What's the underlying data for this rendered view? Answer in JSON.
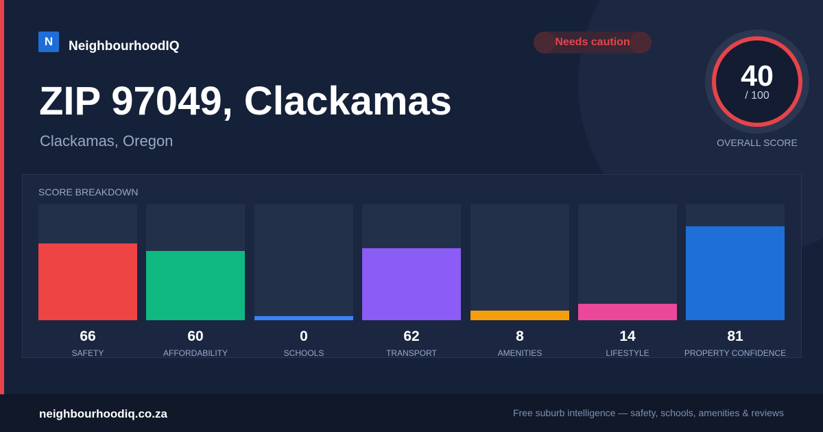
{
  "brand": {
    "logo_letter": "N",
    "name": "NeighbourhoodIQ"
  },
  "status": {
    "label": "Needs caution",
    "color": "#e8434a"
  },
  "title": "ZIP 97049, Clackamas",
  "subtitle": "Clackamas, Oregon",
  "overall_score": {
    "value": "40",
    "max": "/ 100",
    "label": "OVERALL SCORE"
  },
  "breakdown": {
    "title": "SCORE BREAKDOWN",
    "metrics": [
      {
        "label": "SAFETY",
        "value": 66,
        "color": "#ef4444"
      },
      {
        "label": "AFFORDABILITY",
        "value": 60,
        "color": "#10b981"
      },
      {
        "label": "SCHOOLS",
        "value": 0,
        "color": "#3b82f6"
      },
      {
        "label": "TRANSPORT",
        "value": 62,
        "color": "#8b5cf6"
      },
      {
        "label": "AMENITIES",
        "value": 8,
        "color": "#f59e0b"
      },
      {
        "label": "LIFESTYLE",
        "value": 14,
        "color": "#ec4899"
      },
      {
        "label": "PROPERTY CONFIDENCE",
        "value": 81,
        "color": "#1f6fd8"
      }
    ]
  },
  "footer": {
    "domain": "neighbourhoodiq.co.za",
    "tagline": "Free suburb intelligence — safety, schools, amenities & reviews"
  }
}
